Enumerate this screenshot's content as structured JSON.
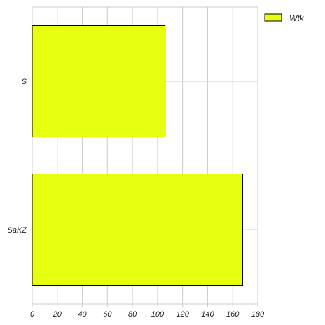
{
  "chart_data": {
    "type": "bar",
    "orientation": "horizontal",
    "title": "",
    "xlabel": "",
    "ylabel": "",
    "categories": [
      "S",
      "SaKZ"
    ],
    "series": [
      {
        "name": "Wtk",
        "values": [
          106,
          168
        ],
        "color": "#e5ff0e"
      }
    ],
    "xlim": [
      0,
      180
    ],
    "xticks": [
      0,
      20,
      40,
      60,
      80,
      100,
      120,
      140,
      160,
      180
    ],
    "grid": true,
    "legend_position": "top-right"
  },
  "colors": {
    "grid": "#cccccc",
    "bar_edge": "#000000",
    "text": "#222222"
  }
}
